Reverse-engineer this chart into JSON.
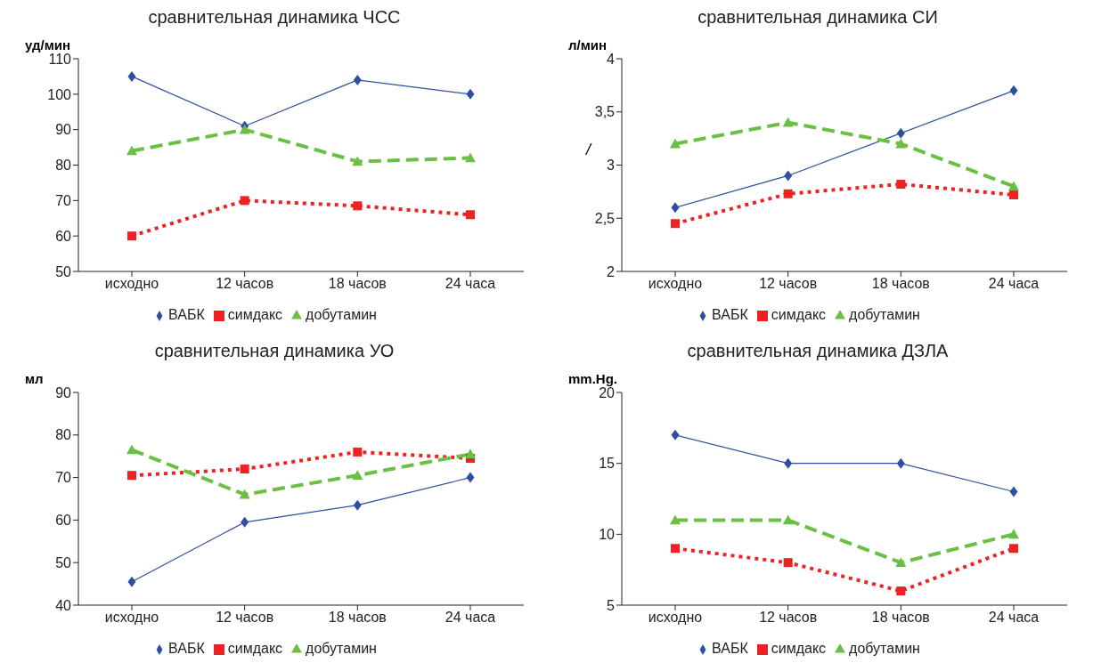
{
  "chart_data": [
    {
      "type": "line",
      "title": "сравнительная динамика ЧСС",
      "ylabel": "уд/мин",
      "categories": [
        "исходно",
        "12 часов",
        "18 часов",
        "24 часа"
      ],
      "ylim": [
        50,
        110
      ],
      "yticks": [
        50,
        60,
        70,
        80,
        90,
        100,
        110
      ],
      "grid": false,
      "legend": "bottom",
      "series": [
        {
          "name": "ВАБК",
          "color": "#2e4ea0",
          "marker": "diamond",
          "line_style": "solid",
          "values": [
            105,
            91,
            104,
            100
          ]
        },
        {
          "name": "симдакс",
          "color": "#ee2222",
          "marker": "square",
          "line_style": "dotted",
          "values": [
            60,
            70,
            68.5,
            66
          ]
        },
        {
          "name": "добутамин",
          "color": "#6cbf45",
          "marker": "triangle",
          "line_style": "dashed",
          "values": [
            84,
            90,
            81,
            82
          ]
        }
      ]
    },
    {
      "type": "line",
      "title": "сравнительная динамика СИ",
      "ylabel": "л/мин",
      "annotations": [
        "/"
      ],
      "categories": [
        "исходно",
        "12 часов",
        "18 часов",
        "24 часа"
      ],
      "ylim": [
        2,
        4
      ],
      "yticks": [
        2,
        {
          "value": 2.5,
          "label": "2,5"
        },
        3,
        {
          "value": 3.5,
          "label": "3,5"
        },
        4
      ],
      "grid": false,
      "legend": "bottom",
      "series": [
        {
          "name": "ВАБК",
          "color": "#2e4ea0",
          "marker": "diamond",
          "line_style": "solid",
          "values": [
            2.6,
            2.9,
            3.3,
            3.7
          ]
        },
        {
          "name": "симдакс",
          "color": "#ee2222",
          "marker": "square",
          "line_style": "dotted",
          "values": [
            2.45,
            2.73,
            2.82,
            2.72
          ]
        },
        {
          "name": "добутамин",
          "color": "#6cbf45",
          "marker": "triangle",
          "line_style": "dashed",
          "values": [
            3.2,
            3.4,
            3.2,
            2.8
          ]
        }
      ]
    },
    {
      "type": "line",
      "title": "сравнительная динамика  УО",
      "ylabel": "мл",
      "categories": [
        "исходно",
        "12 часов",
        "18 часов",
        "24 часа"
      ],
      "ylim": [
        40,
        90
      ],
      "yticks": [
        40,
        50,
        60,
        70,
        80,
        90
      ],
      "grid": false,
      "legend": "bottom",
      "series": [
        {
          "name": "ВАБК",
          "color": "#2e4ea0",
          "marker": "diamond",
          "line_style": "solid",
          "values": [
            45.5,
            59.5,
            63.5,
            70
          ]
        },
        {
          "name": "симдакс",
          "color": "#ee2222",
          "marker": "square",
          "line_style": "dotted",
          "values": [
            70.5,
            72,
            76,
            74.5
          ]
        },
        {
          "name": "добутамин",
          "color": "#6cbf45",
          "marker": "triangle",
          "line_style": "dashed",
          "values": [
            76.5,
            66,
            70.5,
            75.5
          ]
        }
      ]
    },
    {
      "type": "line",
      "title": "сравнительная динамика ДЗЛА",
      "ylabel": "mm.Hg.",
      "categories": [
        "исходно",
        "12 часов",
        "18 часов",
        "24 часа"
      ],
      "ylim": [
        5,
        20
      ],
      "yticks": [
        5,
        10,
        15,
        20
      ],
      "grid": false,
      "legend": "bottom",
      "series": [
        {
          "name": "ВАБК",
          "color": "#2e4ea0",
          "marker": "diamond",
          "line_style": "solid",
          "values": [
            17,
            15,
            15,
            13
          ]
        },
        {
          "name": "симдакс",
          "color": "#ee2222",
          "marker": "square",
          "line_style": "dotted",
          "values": [
            9,
            8,
            6,
            9
          ]
        },
        {
          "name": "добутамин",
          "color": "#6cbf45",
          "marker": "triangle",
          "line_style": "dashed",
          "values": [
            11,
            11,
            8,
            10
          ]
        }
      ]
    }
  ]
}
